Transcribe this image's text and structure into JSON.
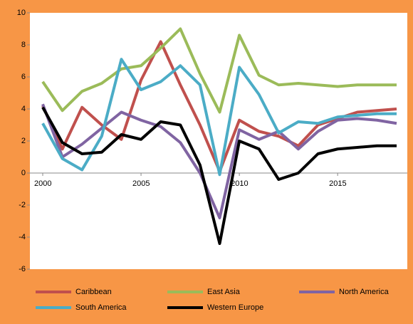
{
  "chart_data": {
    "type": "line",
    "x": [
      2000,
      2001,
      2002,
      2003,
      2004,
      2005,
      2006,
      2007,
      2008,
      2009,
      2010,
      2011,
      2012,
      2013,
      2014,
      2015,
      2016,
      2017,
      2018
    ],
    "xlim": [
      2000,
      2018
    ],
    "xticks": [
      2000,
      2005,
      2010,
      2015
    ],
    "ylim": [
      -6,
      10
    ],
    "yticks": [
      -6,
      -4,
      -2,
      0,
      2,
      4,
      6,
      8,
      10
    ],
    "grid": false,
    "legend": "bottom",
    "series": [
      {
        "name": "Caribbean",
        "color": "#c0504d",
        "values": [
          4.2,
          1.5,
          4.1,
          3.0,
          2.1,
          5.8,
          8.2,
          5.5,
          3.0,
          0.1,
          3.3,
          2.6,
          2.3,
          1.7,
          3.0,
          3.4,
          3.8,
          3.9,
          4.0
        ]
      },
      {
        "name": "East Asia",
        "color": "#9bbb59",
        "values": [
          5.7,
          3.9,
          5.1,
          5.6,
          6.5,
          6.7,
          7.8,
          9.0,
          6.2,
          3.8,
          8.6,
          6.1,
          5.5,
          5.6,
          5.5,
          5.4,
          5.5,
          5.5,
          5.5
        ]
      },
      {
        "name": "North America",
        "color": "#8064a2",
        "values": [
          4.3,
          1.0,
          1.8,
          2.8,
          3.8,
          3.3,
          2.9,
          1.9,
          0.0,
          -2.8,
          2.7,
          2.1,
          2.6,
          1.5,
          2.6,
          3.3,
          3.4,
          3.3,
          3.1
        ]
      },
      {
        "name": "South America",
        "color": "#4bacc6",
        "values": [
          3.1,
          0.9,
          0.2,
          2.3,
          7.1,
          5.2,
          5.7,
          6.7,
          5.5,
          -0.1,
          6.6,
          4.9,
          2.5,
          3.2,
          3.1,
          3.5,
          3.6,
          3.7,
          3.7
        ]
      },
      {
        "name": "Western Europe",
        "color": "#000000",
        "values": [
          4.1,
          1.9,
          1.2,
          1.3,
          2.4,
          2.1,
          3.2,
          3.0,
          0.5,
          -4.4,
          2.0,
          1.5,
          -0.4,
          0.0,
          1.2,
          1.5,
          1.6,
          1.7,
          1.7
        ]
      }
    ]
  }
}
